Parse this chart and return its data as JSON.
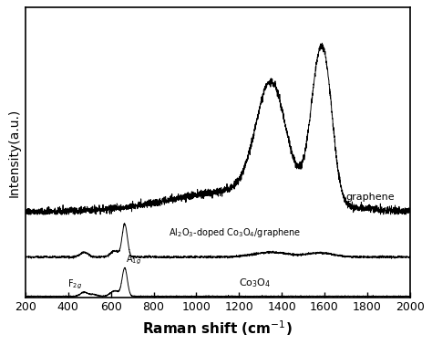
{
  "xlabel": "Raman shift (cm$^{-1}$)",
  "ylabel": "Intensity(a.u.)",
  "xlim": [
    200,
    2000
  ],
  "xticks": [
    200,
    400,
    600,
    800,
    1000,
    1200,
    1400,
    1600,
    1800,
    2000
  ],
  "labels": {
    "graphene": "graphene",
    "composite": "Al$_2$O$_3$-doped Co$_3$O$_4$/graphene",
    "co3o4": "Co$_3$O$_4$"
  },
  "annotations": {
    "F2g": "F$_{2g}$",
    "A1g": "A$_{1g}$"
  },
  "offsets": {
    "co3o4": 0.0,
    "composite": 0.13,
    "graphene": 0.28
  },
  "scales": {
    "co3o4": 0.1,
    "composite": 0.12,
    "graphene": 0.58
  }
}
